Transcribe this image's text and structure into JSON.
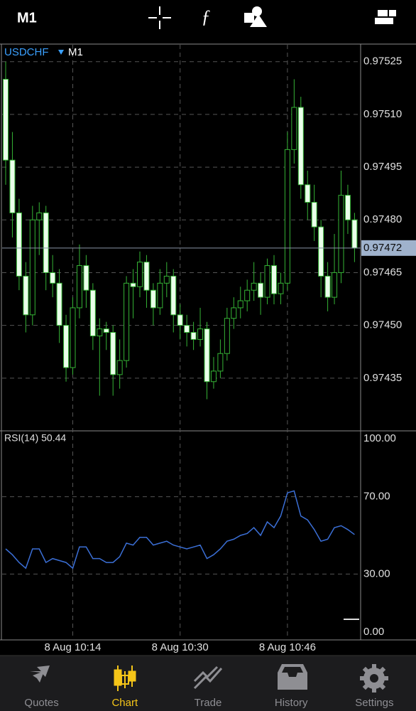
{
  "header": {
    "timeframe": "M1"
  },
  "chart_data": [
    {
      "type": "candlestick",
      "symbol": "USDCHF",
      "timeframe": "M1",
      "categories": [
        null,
        null,
        null,
        null,
        null,
        null,
        null,
        null,
        null,
        null,
        "8 Aug 10:14",
        null,
        null,
        null,
        null,
        null,
        null,
        null,
        null,
        null,
        null,
        null,
        null,
        null,
        null,
        null,
        "8 Aug 10:30",
        null,
        null,
        null,
        null,
        null,
        null,
        null,
        null,
        null,
        null,
        null,
        null,
        null,
        null,
        null,
        "8 Aug 10:46",
        null,
        null,
        null,
        null,
        null,
        null,
        null,
        null,
        null,
        null
      ],
      "open": [
        0.9752,
        0.97497,
        0.97482,
        0.97464,
        0.97453,
        0.9748,
        0.97482,
        0.97465,
        0.97462,
        0.9745,
        0.97438,
        0.97455,
        0.97467,
        0.9746,
        0.97447,
        0.97449,
        0.97448,
        0.97436,
        0.9744,
        0.97462,
        0.97461,
        0.97468,
        0.9746,
        0.97455,
        0.97462,
        0.97464,
        0.97453,
        0.9745,
        0.97448,
        0.97446,
        0.97449,
        0.97434,
        0.97437,
        0.97442,
        0.97452,
        0.97455,
        0.97457,
        0.9746,
        0.97462,
        0.97458,
        0.97467,
        0.97459,
        0.97462,
        0.975,
        0.97512,
        0.9749,
        0.97485,
        0.97478,
        0.97464,
        0.97458,
        0.97465,
        0.97487,
        0.9748
      ],
      "high": [
        0.97525,
        0.97505,
        0.97486,
        0.97468,
        0.97484,
        0.97485,
        0.97484,
        0.9747,
        0.97466,
        0.97453,
        0.97458,
        0.97473,
        0.9747,
        0.97462,
        0.97452,
        0.97451,
        0.9745,
        0.97446,
        0.97464,
        0.97466,
        0.97471,
        0.9747,
        0.97462,
        0.97466,
        0.97468,
        0.97466,
        0.97456,
        0.97453,
        0.97451,
        0.97455,
        0.97451,
        0.97441,
        0.97446,
        0.97455,
        0.97458,
        0.97461,
        0.97463,
        0.97468,
        0.97465,
        0.97469,
        0.9747,
        0.97465,
        0.97505,
        0.9752,
        0.97515,
        0.97494,
        0.9749,
        0.9748,
        0.97468,
        0.97476,
        0.97494,
        0.9749,
        0.97482
      ],
      "low": [
        0.9749,
        0.97475,
        0.9746,
        0.97448,
        0.9745,
        0.9747,
        0.9746,
        0.97458,
        0.97445,
        0.97434,
        0.97436,
        0.97452,
        0.97455,
        0.97443,
        0.9743,
        0.97443,
        0.9743,
        0.97432,
        0.97438,
        0.97452,
        0.97458,
        0.97455,
        0.9745,
        0.97453,
        0.97458,
        0.97448,
        0.97446,
        0.97444,
        0.97443,
        0.97444,
        0.97429,
        0.97432,
        0.97435,
        0.9744,
        0.97449,
        0.97452,
        0.97454,
        0.97457,
        0.97453,
        0.97456,
        0.97456,
        0.97456,
        0.9746,
        0.97496,
        0.97486,
        0.9748,
        0.97474,
        0.97458,
        0.97454,
        0.97456,
        0.97462,
        0.97476,
        0.97468
      ],
      "close": [
        0.97497,
        0.97482,
        0.97464,
        0.97453,
        0.9748,
        0.97482,
        0.97465,
        0.97462,
        0.9745,
        0.97438,
        0.97455,
        0.97467,
        0.9746,
        0.97447,
        0.97449,
        0.97448,
        0.97436,
        0.9744,
        0.97462,
        0.97461,
        0.97468,
        0.9746,
        0.97455,
        0.97462,
        0.97464,
        0.97453,
        0.9745,
        0.97448,
        0.97446,
        0.97449,
        0.97434,
        0.97437,
        0.97442,
        0.97452,
        0.97455,
        0.97457,
        0.9746,
        0.97462,
        0.97458,
        0.97467,
        0.97459,
        0.97462,
        0.975,
        0.97512,
        0.9749,
        0.97485,
        0.97478,
        0.97464,
        0.97458,
        0.97465,
        0.97487,
        0.9748,
        0.97472
      ],
      "current_price": 0.97472,
      "ylim": [
        0.9742,
        0.9753
      ],
      "yticks": [
        0.97525,
        {
          "value": 0.9751,
          "label": "0.97510"
        },
        0.97495,
        {
          "value": 0.9748,
          "label": "0.97480"
        },
        0.97465,
        {
          "value": 0.9745,
          "label": "0.97450"
        },
        0.97435
      ],
      "grid": true,
      "up_color": "#000000",
      "down_color": "#eaffea",
      "outline_color": "#35b335"
    },
    {
      "type": "line",
      "title": "RSI(14) 50.44",
      "color": "#3b6fd6",
      "values": [
        43,
        40,
        36,
        33,
        43,
        43,
        36,
        38,
        37,
        36,
        33,
        44,
        44,
        38,
        38,
        36,
        36,
        39,
        46,
        45,
        49,
        49,
        45,
        46,
        47,
        45,
        44,
        43,
        44,
        45,
        38,
        40,
        43,
        47,
        48,
        50,
        51,
        54,
        50,
        57,
        54,
        60,
        72,
        73,
        60,
        58,
        53,
        47,
        48,
        54,
        55,
        53,
        50.44
      ],
      "ylim": [
        0,
        100
      ],
      "yticks": [
        {
          "value": 100,
          "label": "100.00"
        },
        {
          "value": 70,
          "label": "70.00"
        },
        {
          "value": 30,
          "label": "30.00"
        },
        {
          "value": 0,
          "label": "0.00"
        }
      ],
      "grid": true
    }
  ],
  "tabs": [
    {
      "label": "Quotes",
      "active": false
    },
    {
      "label": "Chart",
      "active": true
    },
    {
      "label": "Trade",
      "active": false
    },
    {
      "label": "History",
      "active": false
    },
    {
      "label": "Settings",
      "active": false
    }
  ]
}
